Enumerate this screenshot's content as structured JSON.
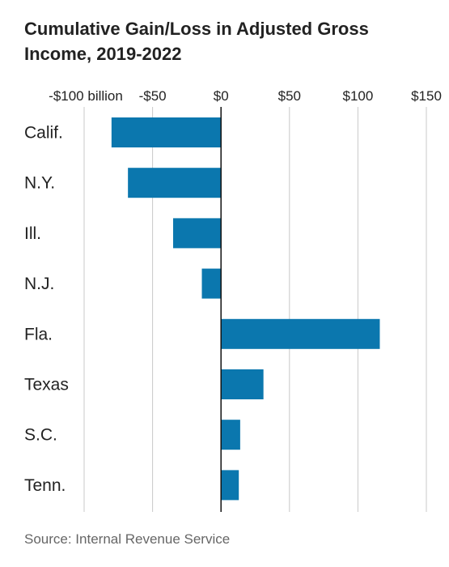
{
  "title": "Cumulative Gain/Loss in Adjusted Gross Income, 2019-2022",
  "source": "Source: Internal Revenue Service",
  "colors": {
    "bar": "#0b77ae",
    "grid": "#c8c8c8",
    "axis": "#111111",
    "text": "#222222"
  },
  "chart_data": {
    "type": "bar",
    "orientation": "horizontal",
    "title": "Cumulative Gain/Loss in Adjusted Gross Income, 2019-2022",
    "categories": [
      "Calif.",
      "N.Y.",
      "Ill.",
      "N.J.",
      "Fla.",
      "Texas",
      "S.C.",
      "Tenn."
    ],
    "values": [
      -80,
      -68,
      -35,
      -14,
      116,
      31,
      14,
      13
    ],
    "unit": "billion $",
    "xlim": [
      -100,
      150
    ],
    "ticks": [
      -100,
      -50,
      0,
      50,
      100,
      150
    ],
    "tick_labels": [
      "-$100 billion",
      "-$50",
      "$0",
      "$50",
      "$100",
      "$150"
    ],
    "grid": true
  }
}
